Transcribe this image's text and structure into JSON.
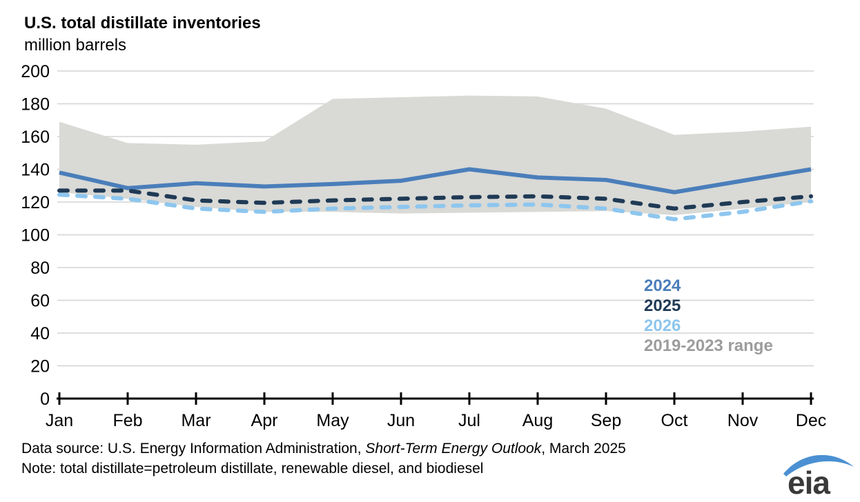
{
  "header": {
    "title": "U.S. total distillate inventories",
    "subtitle": "million barrels"
  },
  "chart_data": {
    "type": "line",
    "x": [
      "Jan",
      "Feb",
      "Mar",
      "Apr",
      "May",
      "Jun",
      "Jul",
      "Aug",
      "Sep",
      "Oct",
      "Nov",
      "Dec"
    ],
    "title": "U.S. total distillate inventories",
    "ylabel": "million barrels",
    "ylim": [
      0,
      200
    ],
    "ytick_step": 20,
    "grid": "horizontal",
    "legend_position": "right-center",
    "series": [
      {
        "name": "2024",
        "style": "solid",
        "color": "#4a7eba",
        "values": [
          138,
          128.5,
          131.5,
          129.5,
          131,
          133,
          140,
          135,
          133.5,
          126,
          133,
          140
        ]
      },
      {
        "name": "2025",
        "style": "dashed",
        "color": "#1f3a55",
        "values": [
          127,
          127,
          121,
          119.5,
          121,
          122,
          123,
          123.5,
          122,
          116,
          120,
          123.5
        ]
      },
      {
        "name": "2026",
        "style": "dashed",
        "color": "#8dc6ee",
        "values": [
          124.5,
          122,
          116,
          114,
          116,
          117,
          118,
          118.5,
          116,
          109.5,
          114,
          120.5
        ]
      }
    ],
    "band": {
      "name": "2019-2023 range",
      "color": "#d9d9d6",
      "label_color": "#9c9c9c",
      "top": [
        169,
        156,
        155,
        157,
        183,
        184,
        185,
        184.5,
        177,
        161,
        163,
        166
      ],
      "bottom": [
        126,
        122,
        117,
        114,
        114,
        113,
        113.5,
        114,
        114.5,
        112,
        116,
        120
      ]
    }
  },
  "footer": {
    "line1_prefix": "Data source: U.S. Energy Information Administration, ",
    "line1_italic": "Short-Term Energy Outlook",
    "line1_suffix": ", March 2025",
    "line2": "Note: total distillate=petroleum distillate, renewable diesel, and biodiesel"
  },
  "logo": {
    "text": "eia",
    "text_color": "#3a3a3a",
    "swoosh_color": "#4a90d2"
  }
}
